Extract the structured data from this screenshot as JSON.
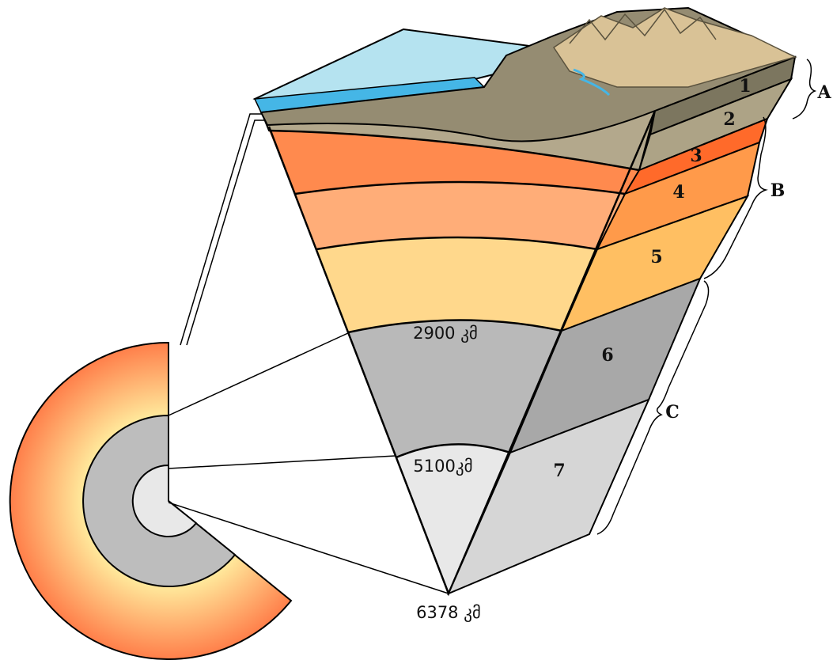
{
  "layers": [
    "1",
    "2",
    "3",
    "4",
    "5",
    "6",
    "7"
  ],
  "groups": [
    "A",
    "B",
    "C"
  ],
  "depths": [
    "2900 კმ",
    "5100კმ",
    "6378 კმ"
  ]
}
